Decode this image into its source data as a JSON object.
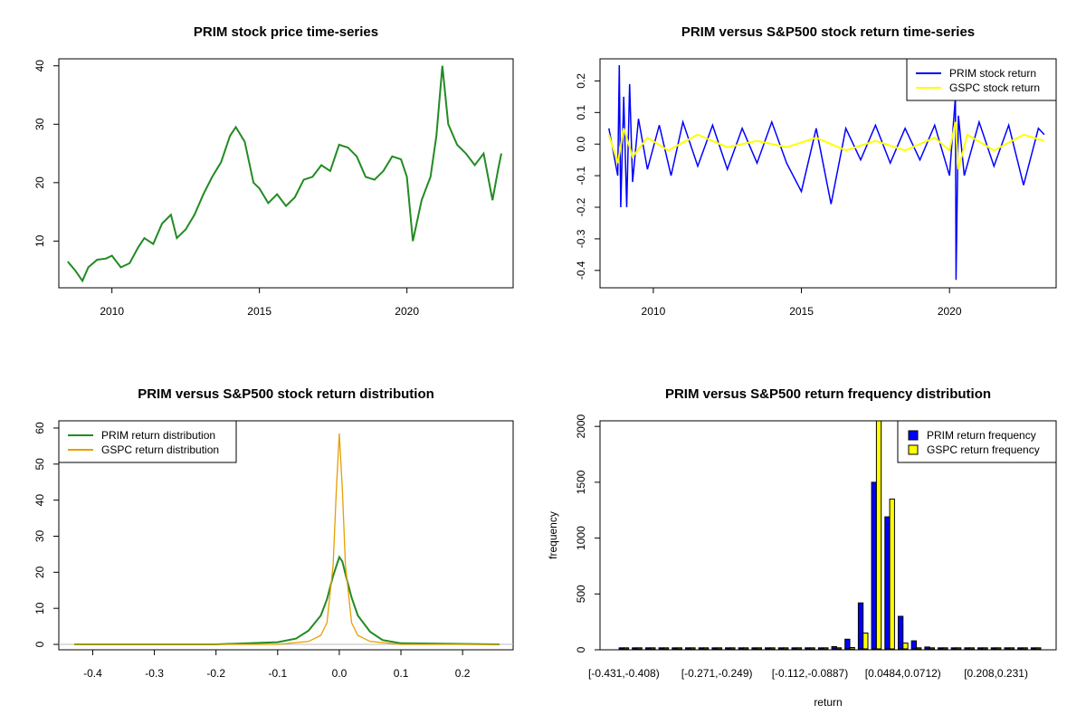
{
  "chart_data": [
    {
      "type": "line",
      "title": "PRIM stock price time-series",
      "xlabel": "",
      "ylabel": "",
      "xlim": [
        2008.2,
        2023.6
      ],
      "ylim": [
        2.0,
        41.2
      ],
      "xticks": [
        "2010",
        "2015",
        "2020"
      ],
      "yticks": [
        "10",
        "20",
        "30",
        "40"
      ],
      "series": [
        {
          "color": "#228B22",
          "x": [
            2008.5,
            2008.75,
            2009.0,
            2009.2,
            2009.5,
            2009.8,
            2010.0,
            2010.3,
            2010.6,
            2010.9,
            2011.1,
            2011.4,
            2011.7,
            2012.0,
            2012.2,
            2012.5,
            2012.8,
            2013.1,
            2013.4,
            2013.7,
            2014.0,
            2014.2,
            2014.5,
            2014.8,
            2015.0,
            2015.3,
            2015.6,
            2015.9,
            2016.2,
            2016.5,
            2016.8,
            2017.1,
            2017.4,
            2017.7,
            2018.0,
            2018.3,
            2018.6,
            2018.9,
            2019.2,
            2019.5,
            2019.8,
            2020.0,
            2020.2,
            2020.5,
            2020.8,
            2021.0,
            2021.2,
            2021.4,
            2021.7,
            2022.0,
            2022.3,
            2022.6,
            2022.9,
            2023.1,
            2023.2
          ],
          "y": [
            6.5,
            5.0,
            3.2,
            5.5,
            6.8,
            7.0,
            7.5,
            5.5,
            6.2,
            9.0,
            10.5,
            9.5,
            13.0,
            14.5,
            10.5,
            12.0,
            14.5,
            18.0,
            21.0,
            23.5,
            28.0,
            29.5,
            27.0,
            20.0,
            19.0,
            16.5,
            18.0,
            16.0,
            17.5,
            20.5,
            21.0,
            23.0,
            22.0,
            26.5,
            26.0,
            24.5,
            21.0,
            20.5,
            22.0,
            24.5,
            24.0,
            21.0,
            10.0,
            17.0,
            21.0,
            28.0,
            40.0,
            30.0,
            26.5,
            25.0,
            23.0,
            25.0,
            17.0,
            22.5,
            25.0
          ]
        }
      ]
    },
    {
      "type": "line",
      "title": "PRIM versus S&P500 stock return time-series",
      "xlabel": "",
      "ylabel": "",
      "xlim": [
        2008.2,
        2023.6
      ],
      "ylim": [
        -0.455,
        0.27
      ],
      "xticks": [
        "2010",
        "2015",
        "2020"
      ],
      "yticks": [
        "-0.4",
        "-0.3",
        "-0.2",
        "-0.1",
        "0.0",
        "0.1",
        "0.2"
      ],
      "legend": "top-right",
      "series": [
        {
          "name": "PRIM stock return",
          "color": "#0000FF",
          "x": [
            2008.5,
            2008.8,
            2008.85,
            2008.9,
            2009.0,
            2009.1,
            2009.2,
            2009.3,
            2009.5,
            2009.8,
            2010.2,
            2010.6,
            2011.0,
            2011.5,
            2012.0,
            2012.5,
            2013.0,
            2013.5,
            2014.0,
            2014.5,
            2015.0,
            2015.5,
            2016.0,
            2016.5,
            2017.0,
            2017.5,
            2018.0,
            2018.5,
            2019.0,
            2019.5,
            2020.0,
            2020.2,
            2020.22,
            2020.3,
            2020.5,
            2021.0,
            2021.5,
            2022.0,
            2022.5,
            2023.0,
            2023.2
          ],
          "y": [
            0.05,
            -0.1,
            0.25,
            -0.2,
            0.15,
            -0.2,
            0.19,
            -0.12,
            0.08,
            -0.08,
            0.06,
            -0.1,
            0.07,
            -0.07,
            0.06,
            -0.08,
            0.05,
            -0.06,
            0.07,
            -0.06,
            -0.15,
            0.05,
            -0.19,
            0.05,
            -0.05,
            0.06,
            -0.06,
            0.05,
            -0.05,
            0.06,
            -0.1,
            0.15,
            -0.43,
            0.09,
            -0.1,
            0.07,
            -0.07,
            0.06,
            -0.13,
            0.05,
            0.03
          ]
        },
        {
          "name": "GSPC stock return",
          "color": "#FFFF00",
          "x": [
            2008.5,
            2008.8,
            2009.0,
            2009.3,
            2009.8,
            2010.5,
            2011.5,
            2012.5,
            2013.5,
            2014.5,
            2015.5,
            2016.5,
            2017.5,
            2018.5,
            2019.5,
            2020.0,
            2020.2,
            2020.3,
            2020.6,
            2021.5,
            2022.5,
            2023.2
          ],
          "y": [
            0.03,
            -0.06,
            0.05,
            -0.04,
            0.02,
            -0.02,
            0.03,
            -0.01,
            0.01,
            -0.01,
            0.02,
            -0.02,
            0.01,
            -0.02,
            0.02,
            -0.02,
            0.07,
            -0.08,
            0.03,
            -0.02,
            0.03,
            0.01
          ]
        }
      ]
    },
    {
      "type": "line",
      "title": "PRIM versus S&P500 stock return distribution",
      "xlabel": "",
      "ylabel": "",
      "xlim": [
        -0.455,
        0.282
      ],
      "ylim": [
        -1.5,
        62.0
      ],
      "xticks": [
        "-0.4",
        "-0.3",
        "-0.2",
        "-0.1",
        "0.0",
        "0.1",
        "0.2"
      ],
      "yticks": [
        "0",
        "10",
        "20",
        "30",
        "40",
        "50",
        "60"
      ],
      "legend": "top-left",
      "series": [
        {
          "name": "PRIM return distribution",
          "color": "#228B22",
          "x": [
            -0.43,
            -0.2,
            -0.1,
            -0.07,
            -0.05,
            -0.03,
            -0.02,
            -0.01,
            0.0,
            0.005,
            0.01,
            0.02,
            0.03,
            0.05,
            0.07,
            0.1,
            0.26
          ],
          "y": [
            0.0,
            0.0,
            0.6,
            1.6,
            3.8,
            8.0,
            12.5,
            19.0,
            24.2,
            23.0,
            19.5,
            13.0,
            8.0,
            3.5,
            1.2,
            0.3,
            0.0
          ]
        },
        {
          "name": "GSPC return distribution",
          "color": "#E69F00",
          "x": [
            -0.43,
            -0.1,
            -0.05,
            -0.03,
            -0.02,
            -0.01,
            -0.005,
            0.0,
            0.005,
            0.01,
            0.02,
            0.03,
            0.05,
            0.1,
            0.26
          ],
          "y": [
            0.0,
            0.0,
            0.8,
            2.5,
            6.0,
            22.0,
            42.0,
            58.5,
            43.0,
            22.0,
            6.0,
            2.5,
            0.8,
            0.0,
            0.0
          ]
        }
      ]
    },
    {
      "type": "bar",
      "title": "PRIM versus S&P500 return frequency distribution",
      "xlabel": "return",
      "ylabel": "frequency",
      "ylim": [
        0,
        2050
      ],
      "yticks": [
        "0",
        "500",
        "1000",
        "1500",
        "2000"
      ],
      "xtick_labels": [
        "[-0.431,-0.408)",
        "[-0.271,-0.249)",
        "[-0.112,-0.0887)",
        "[0.0484,0.0712)",
        "[0.208,0.231)"
      ],
      "xtick_bins": [
        0,
        7,
        14,
        21,
        28
      ],
      "legend": "top-right",
      "series": [
        {
          "name": "PRIM return frequency",
          "color": "#0000FF",
          "values": [
            1,
            0,
            0,
            0,
            0,
            0,
            0,
            0,
            1,
            0,
            0,
            0,
            2,
            4,
            8,
            15,
            28,
            95,
            420,
            1500,
            1190,
            300,
            80,
            25,
            8,
            3,
            2,
            1,
            0,
            0,
            0,
            1
          ]
        },
        {
          "name": "GSPC return frequency",
          "color": "#FFFF00",
          "values": [
            0,
            0,
            0,
            0,
            0,
            0,
            0,
            0,
            0,
            0,
            0,
            0,
            0,
            0,
            1,
            3,
            5,
            20,
            150,
            2060,
            1350,
            60,
            15,
            5,
            1,
            0,
            0,
            0,
            0,
            0,
            0,
            0
          ]
        }
      ]
    }
  ]
}
